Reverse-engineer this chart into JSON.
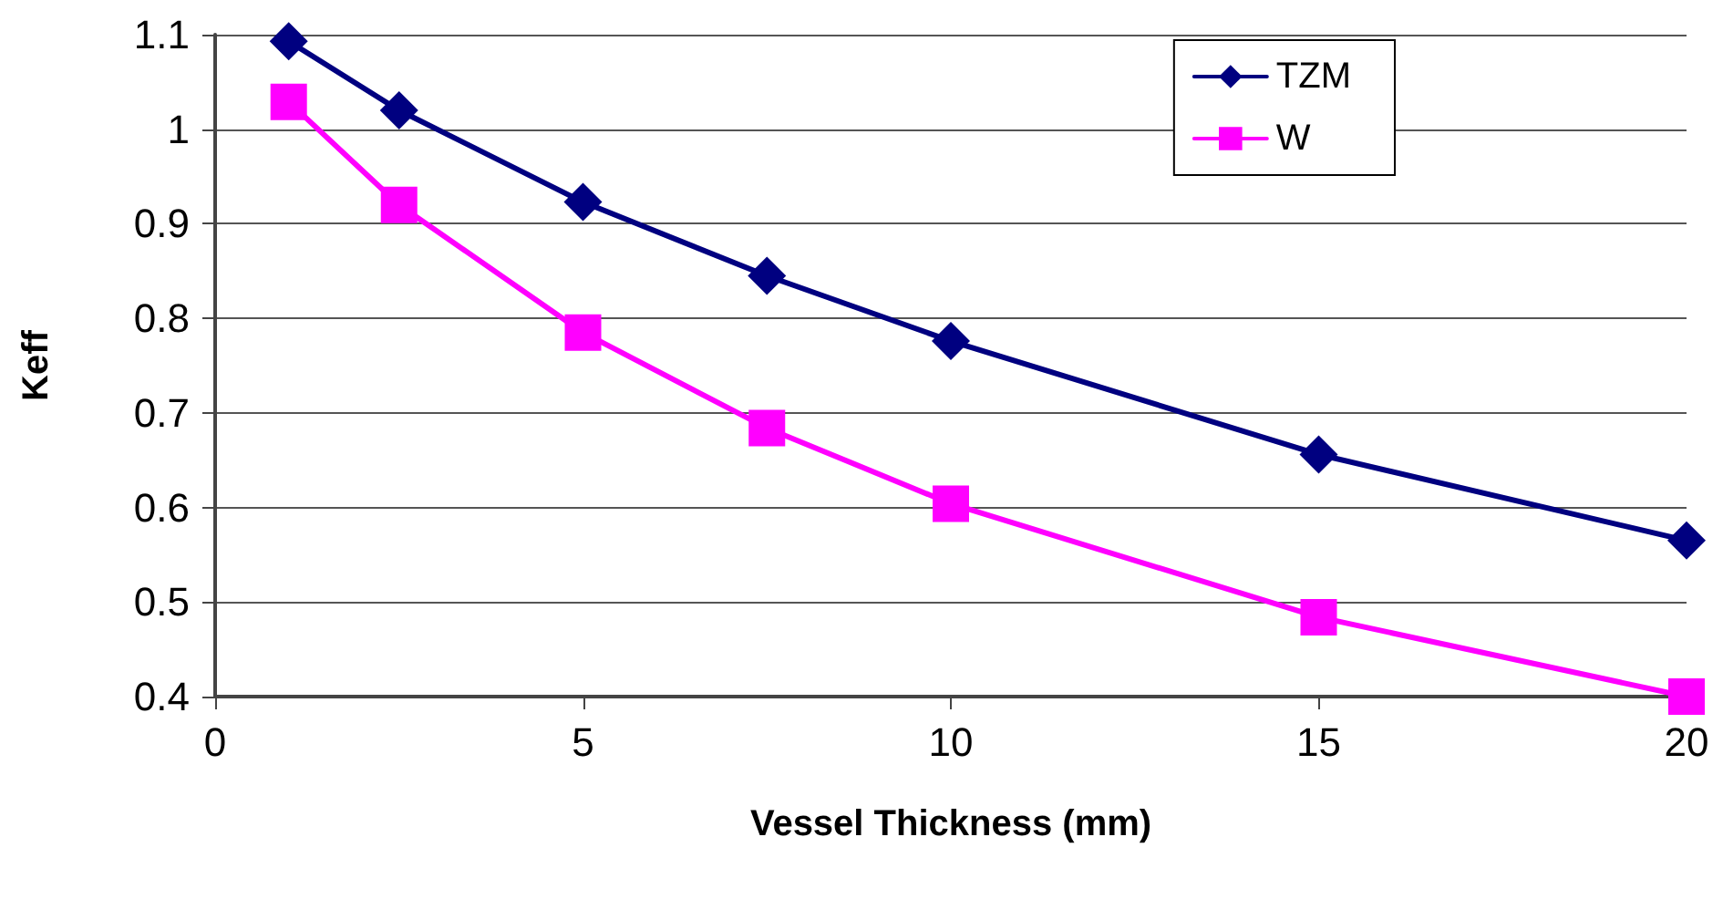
{
  "chart_data": {
    "type": "line",
    "xlabel": "Vessel Thickness (mm)",
    "ylabel": "Keff",
    "xlim": [
      0,
      20
    ],
    "xticks": [
      0,
      5,
      10,
      15,
      20
    ],
    "ylim": [
      0.4,
      1.1
    ],
    "yticks": [
      0.4,
      0.5,
      0.6,
      0.7,
      0.8,
      0.9,
      1,
      1.1
    ],
    "grid": "y",
    "legend": "top right",
    "line_style": "solid",
    "series": [
      {
        "name": "TZM",
        "color": "#000080",
        "marker": "diamond",
        "x": [
          1,
          2.5,
          5,
          7.5,
          10,
          15,
          20
        ],
        "values": [
          1.093,
          1.02,
          0.923,
          0.845,
          0.776,
          0.656,
          0.565
        ]
      },
      {
        "name": "W",
        "color": "#ff00ff",
        "marker": "square",
        "x": [
          1,
          2.5,
          5,
          7.5,
          10,
          15,
          20
        ],
        "values": [
          1.029,
          0.92,
          0.785,
          0.684,
          0.604,
          0.484,
          0.4
        ]
      }
    ]
  }
}
